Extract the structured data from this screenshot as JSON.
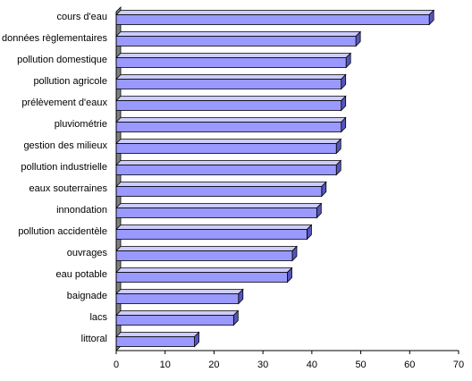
{
  "chart_data": {
    "type": "bar",
    "orientation": "horizontal",
    "style": "3d",
    "title": "",
    "xlabel": "",
    "ylabel": "",
    "categories": [
      "cours d'eau",
      "données règlementaires",
      "pollution domestique",
      "pollution agricole",
      "prélèvement d'eaux",
      "pluviométrie",
      "gestion des milieux",
      "pollution industrielle",
      "eaux souterraines",
      "innondation",
      "pollution accidentèle",
      "ouvrages",
      "eau potable",
      "baignade",
      "lacs",
      "littoral"
    ],
    "values": [
      64,
      49,
      47,
      46,
      46,
      46,
      45,
      45,
      42,
      41,
      39,
      36,
      35,
      25,
      24,
      16
    ],
    "xlim": [
      0,
      70
    ],
    "xticks": [
      "0",
      "10",
      "20",
      "30",
      "40",
      "50",
      "60",
      "70"
    ],
    "grid": false,
    "legend": "none",
    "colors": {
      "bar_front": "#9999ff",
      "bar_top": "#ccccff",
      "bar_side": "#5555bb",
      "wall": "#c0c0c0",
      "wall_side": "#808080"
    }
  }
}
